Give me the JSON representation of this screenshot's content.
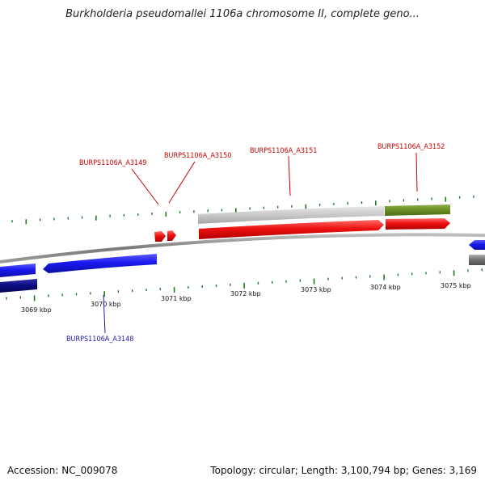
{
  "title": "Burkholderia pseudomallei 1106a chromosome II, complete geno...",
  "footer": {
    "accession": "Accession: NC_009078",
    "summary": "Topology: circular; Length: 3,100,794 bp; Genes: 3,169"
  },
  "scale_labels": [
    "3069 kbp",
    "3070 kbp",
    "3071 kbp",
    "3072 kbp",
    "3073 kbp",
    "3074 kbp",
    "3075 kbp"
  ],
  "locus_labels": {
    "forward": [
      "BURPS1106A_A3149",
      "BURPS1106A_A3150",
      "BURPS1106A_A3151",
      "BURPS1106A_A3152"
    ],
    "reverse": [
      "BURPS1106A_A3148"
    ]
  },
  "colors": {
    "forward_label": "#cc0000",
    "reverse_label": "#1a1aa6",
    "cds_forward": "#ee1111",
    "cds_reverse": "#1a1af0",
    "gene_forward": "#c8c8c8",
    "gene_forward_alt": "#6b8e23",
    "gene_reverse": "#0a0a80",
    "backbone": "#8a8a8a",
    "tick": "#1f7a1f"
  }
}
